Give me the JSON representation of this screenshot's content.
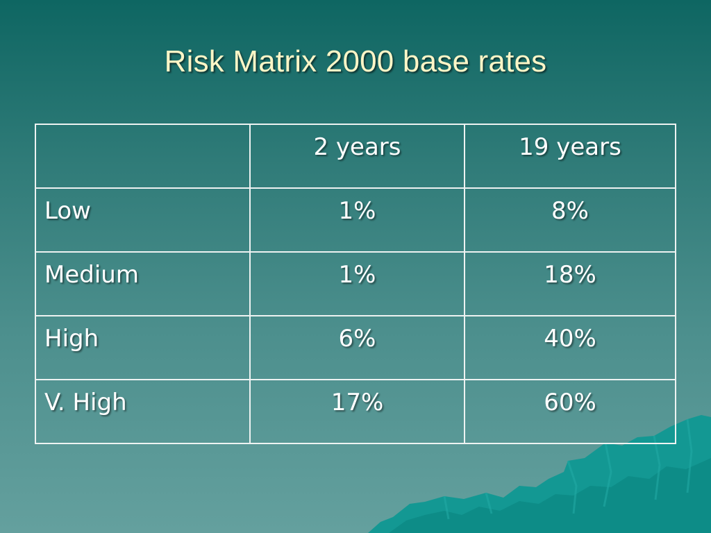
{
  "slide": {
    "title": "Risk Matrix 2000 base rates"
  },
  "table": {
    "header": {
      "corner": "",
      "col_2y": "2 years",
      "col_19y": "19 years"
    },
    "rows": [
      {
        "label": "Low",
        "two_years": "1%",
        "nineteen_years": "8%"
      },
      {
        "label": "Medium",
        "two_years": "1%",
        "nineteen_years": "18%"
      },
      {
        "label": "High",
        "two_years": "6%",
        "nineteen_years": "40%"
      },
      {
        "label": "V. High",
        "two_years": "17%",
        "nineteen_years": "60%"
      }
    ]
  },
  "colors": {
    "title_text": "#fdf6c7",
    "background_top": "#0e6662",
    "background_bottom": "#64a09e",
    "table_border": "#eef3f2",
    "mountain": "#149c97"
  }
}
